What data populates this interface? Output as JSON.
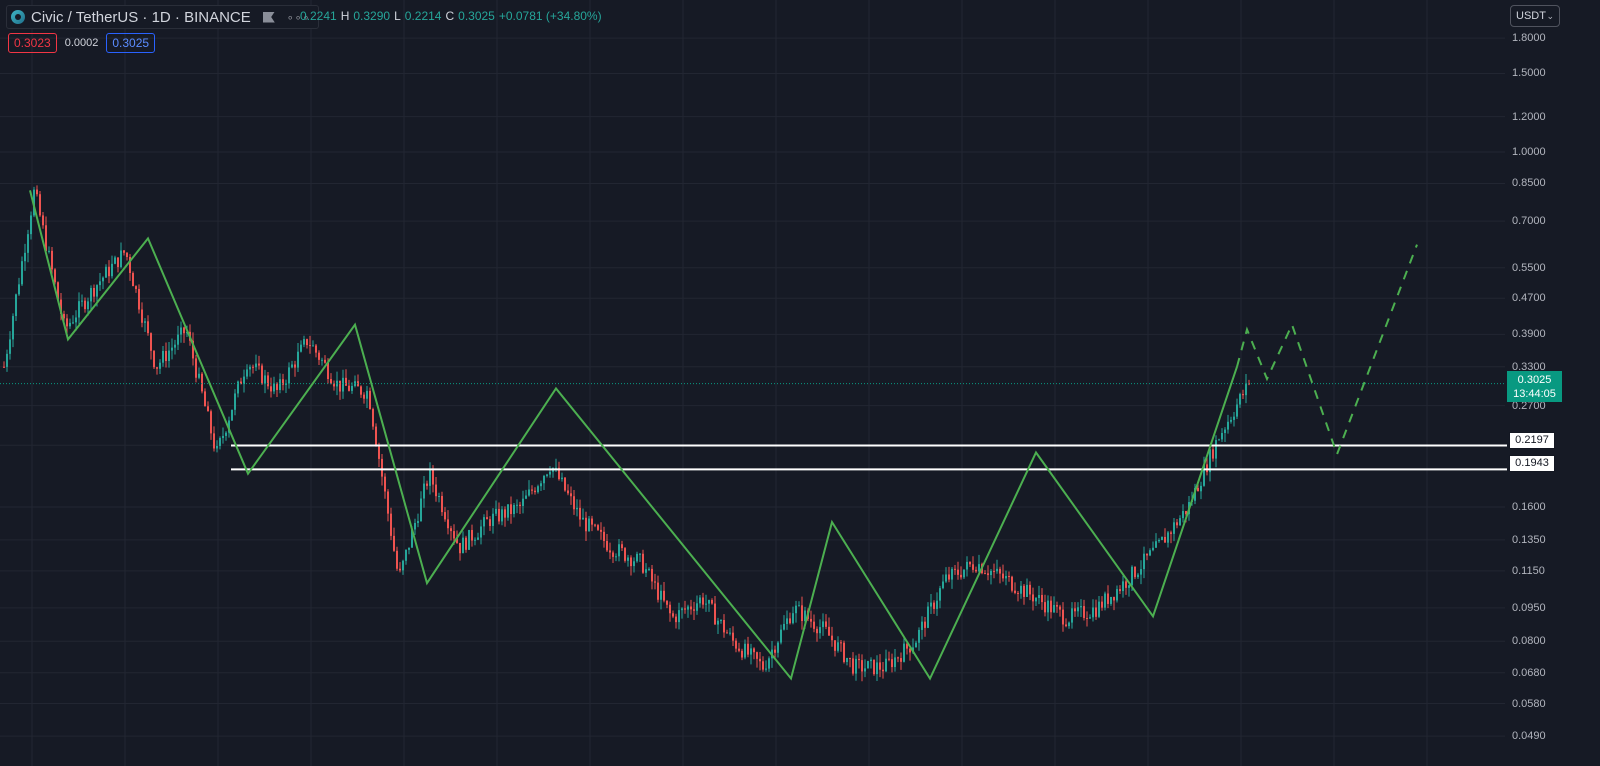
{
  "header": {
    "symbol": "Civic / TetherUS · 1D · BINANCE",
    "more_icon": "more-dots-icon",
    "flag_icon": "flag-icon",
    "ohlc": {
      "o_label": "O",
      "o": "0.2241",
      "h_label": "H",
      "h": "0.3290",
      "l_label": "L",
      "l": "0.2214",
      "c_label": "C",
      "c": "0.3025",
      "change": "+0.0781 (+34.80%)"
    }
  },
  "trade": {
    "bid": "0.3023",
    "spread": "0.0002",
    "ask": "0.3025"
  },
  "currency_selector": {
    "value": "USDT"
  },
  "price_axis": {
    "labels": [
      "1.8000",
      "1.5000",
      "1.2000",
      "1.0000",
      "0.8500",
      "0.7000",
      "0.5500",
      "0.4700",
      "0.3900",
      "0.3300",
      "0.2700",
      "0.2200",
      "0.1600",
      "0.1350",
      "0.1150",
      "0.0950",
      "0.0800",
      "0.0680",
      "0.0580",
      "0.0490"
    ]
  },
  "current_price": {
    "price": "0.3025",
    "countdown": "13:44:05"
  },
  "levels": [
    "0.2197",
    "0.1943"
  ],
  "chart_data": {
    "type": "candlestick",
    "symbol": "CVC/USDT",
    "scale": "log",
    "grid": true,
    "colors": {
      "up": "#26a69a",
      "down": "#ef5350",
      "pattern": "#4caf50",
      "level": "#ffffff",
      "background": "#161a25"
    },
    "ylim": [
      0.046,
      1.95
    ],
    "price_line": 0.3025,
    "horizontal_levels": [
      0.2197,
      0.1943
    ],
    "pattern_pivots": [
      0.82,
      0.38,
      0.64,
      0.19,
      0.41,
      0.108,
      0.295,
      0.066,
      0.148,
      0.066,
      0.212,
      0.091,
      0.33
    ],
    "projection": [
      0.33,
      0.4,
      0.31,
      0.41,
      0.21,
      0.62
    ],
    "price_path_anchors": [
      0.33,
      0.82,
      0.4,
      0.5,
      0.6,
      0.33,
      0.4,
      0.21,
      0.34,
      0.29,
      0.38,
      0.3,
      0.29,
      0.11,
      0.19,
      0.13,
      0.15,
      0.16,
      0.2,
      0.15,
      0.13,
      0.12,
      0.09,
      0.1,
      0.08,
      0.07,
      0.095,
      0.085,
      0.07,
      0.07,
      0.08,
      0.11,
      0.12,
      0.11,
      0.1,
      0.09,
      0.095,
      0.11,
      0.13,
      0.16,
      0.23,
      0.3025
    ]
  }
}
